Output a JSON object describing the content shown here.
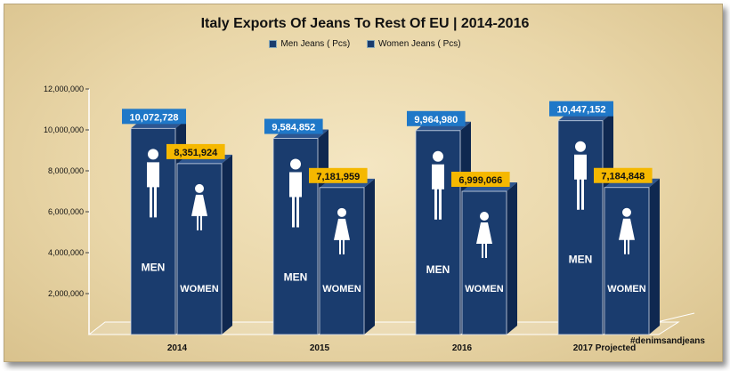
{
  "chart_data": {
    "type": "bar",
    "title": "Italy Exports Of Jeans To Rest Of EU | 2014-2016",
    "categories": [
      "2014",
      "2015",
      "2016",
      "2017 Projected"
    ],
    "series": [
      {
        "name": "Men Jeans ( Pcs)",
        "values": [
          10072728,
          9584852,
          9964980,
          10447152
        ],
        "labels": [
          "10,072,728",
          "9,584,852",
          "9,964,980",
          "10,447,152"
        ],
        "color": "#1a3c6e",
        "label_color": "#1f78c8"
      },
      {
        "name": "Women Jeans ( Pcs)",
        "values": [
          8351924,
          7181959,
          6999066,
          7184848
        ],
        "labels": [
          "8,351,924",
          "7,181,959",
          "6,999,066",
          "7,184,848"
        ],
        "color": "#1a3c6e",
        "label_color": "#f5b800"
      }
    ],
    "ylim": [
      0,
      12000000
    ],
    "yticks": [
      {
        "value": 2000000,
        "label": "2,000,000"
      },
      {
        "value": 4000000,
        "label": "4,000,000"
      },
      {
        "value": 6000000,
        "label": "6,000,000"
      },
      {
        "value": 8000000,
        "label": "8,000,000"
      },
      {
        "value": 10000000,
        "label": "10,000,000"
      },
      {
        "value": 12000000,
        "label": "12,000,000"
      }
    ],
    "legend_position": "top",
    "bar_text": {
      "men": "MEN",
      "women": "WOMEN"
    },
    "watermark": "#denimsandjeans"
  }
}
